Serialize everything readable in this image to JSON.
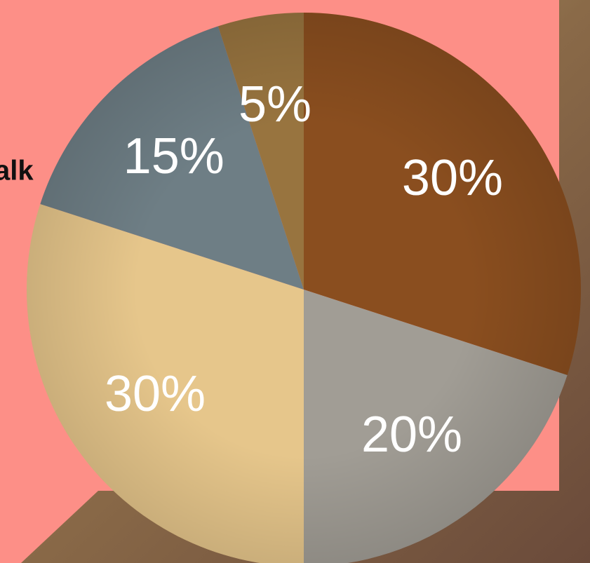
{
  "caption": "alk",
  "chart_data": {
    "type": "pie",
    "values": [
      30,
      20,
      30,
      15,
      5
    ],
    "value_labels": [
      "30%",
      "20%",
      "30%",
      "15%",
      "5%"
    ],
    "colors": [
      "#8a4e1f",
      "#a19d95",
      "#e6c68b",
      "#6e7e85",
      "#98743f"
    ]
  }
}
